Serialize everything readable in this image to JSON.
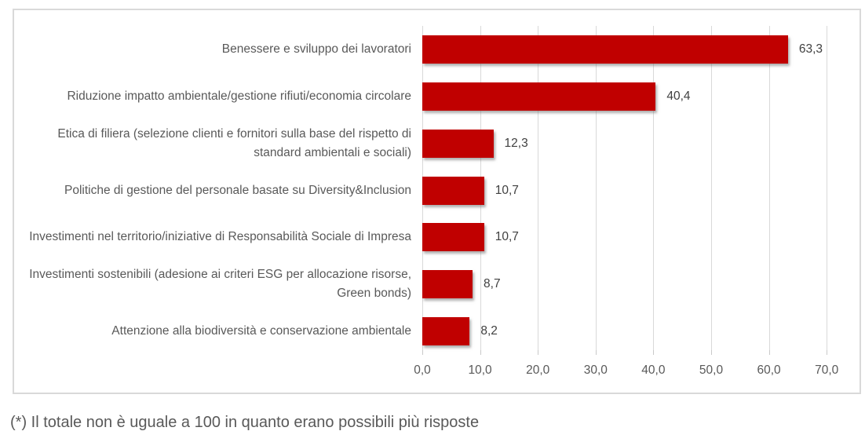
{
  "chart_data": {
    "type": "bar",
    "orientation": "horizontal",
    "title": "",
    "xlabel": "",
    "ylabel": "",
    "categories": [
      "Benessere e sviluppo dei lavoratori",
      "Riduzione impatto ambientale/gestione rifiuti/economia circolare",
      "Etica di filiera (selezione clienti e fornitori sulla base del rispetto di standard ambientali e sociali)",
      "Politiche di gestione del personale basate su Diversity&Inclusion",
      "Investimenti nel territorio/iniziative di Responsabilità Sociale di Impresa",
      "Investimenti sostenibili (adesione ai criteri ESG per allocazione risorse, Green bonds)",
      "Attenzione alla biodiversità e conservazione ambientale"
    ],
    "values": [
      63.3,
      40.4,
      12.3,
      10.7,
      10.7,
      8.7,
      8.2
    ],
    "value_labels": [
      "63,3",
      "40,4",
      "12,3",
      "10,7",
      "10,7",
      "8,7",
      "8,2"
    ],
    "x_tick_values": [
      0,
      10,
      20,
      30,
      40,
      50,
      60,
      70
    ],
    "x_tick_labels": [
      "0,0",
      "10,0",
      "20,0",
      "30,0",
      "40,0",
      "50,0",
      "60,0",
      "70,0"
    ],
    "xlim": [
      0,
      70
    ],
    "grid": "vertical",
    "legend": "none",
    "bar_color": "#C00000"
  },
  "footnote": "(*) Il totale non è uguale a 100 in quanto erano possibili più risposte",
  "colors": {
    "bar": "#C00000",
    "gridline": "#D9D9D9",
    "chart_border": "#D9D9D9",
    "category_text": "#595959",
    "value_text": "#404040",
    "axis_text": "#595959",
    "footnote_text": "#595959",
    "background": "#FFFFFF"
  }
}
